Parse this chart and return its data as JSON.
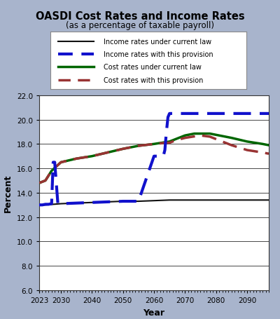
{
  "title": "OASDI Cost Rates and Income Rates",
  "subtitle": "(as a percentage of taxable payroll)",
  "xlabel": "Year",
  "ylabel": "Percent",
  "bg_outer": "#a8b4cc",
  "bg_plot": "#ffffff",
  "ylim": [
    6.0,
    22.0
  ],
  "yticks": [
    6.0,
    8.0,
    10.0,
    12.0,
    14.0,
    16.0,
    18.0,
    20.0,
    22.0
  ],
  "xlim_start": 2023,
  "xlim_end": 2097,
  "xticks": [
    2023,
    2030,
    2040,
    2050,
    2060,
    2070,
    2080,
    2090
  ],
  "legend_labels": [
    "Income rates under current law",
    "Income rates with this provision",
    "Cost rates under current law",
    "Cost rates with this provision"
  ],
  "income_current_x": [
    2023,
    2025,
    2030,
    2035,
    2040,
    2045,
    2050,
    2055,
    2060,
    2065,
    2070,
    2075,
    2080,
    2085,
    2090,
    2095,
    2097
  ],
  "income_current_y": [
    13.0,
    13.0,
    13.1,
    13.15,
    13.2,
    13.25,
    13.3,
    13.3,
    13.35,
    13.4,
    13.4,
    13.4,
    13.4,
    13.4,
    13.4,
    13.4,
    13.4
  ],
  "income_provision_x": [
    2023,
    2024,
    2025,
    2026,
    2027,
    2027.5,
    2028,
    2029,
    2030,
    2035,
    2040,
    2045,
    2050,
    2055,
    2060,
    2063,
    2063.5,
    2064,
    2064.5,
    2065,
    2065.3,
    2066,
    2070,
    2075,
    2080,
    2085,
    2090,
    2095,
    2097
  ],
  "income_provision_y": [
    13.0,
    13.0,
    13.05,
    13.05,
    13.1,
    16.5,
    16.5,
    13.15,
    13.1,
    13.15,
    13.2,
    13.25,
    13.3,
    13.3,
    17.0,
    17.0,
    17.5,
    19.0,
    20.2,
    20.5,
    20.5,
    20.5,
    20.5,
    20.5,
    20.5,
    20.5,
    20.5,
    20.5,
    20.5
  ],
  "cost_current_x": [
    2023,
    2025,
    2027,
    2030,
    2035,
    2040,
    2045,
    2050,
    2055,
    2060,
    2065,
    2070,
    2073,
    2075,
    2078,
    2080,
    2083,
    2085,
    2090,
    2095,
    2097
  ],
  "cost_current_y": [
    14.8,
    15.0,
    15.8,
    16.5,
    16.8,
    17.0,
    17.3,
    17.6,
    17.85,
    18.0,
    18.2,
    18.7,
    18.85,
    18.85,
    18.85,
    18.75,
    18.6,
    18.5,
    18.2,
    18.0,
    17.9
  ],
  "cost_provision_x": [
    2023,
    2025,
    2027,
    2030,
    2035,
    2040,
    2045,
    2050,
    2055,
    2060,
    2064,
    2065,
    2067,
    2070,
    2075,
    2078,
    2080,
    2082,
    2085,
    2090,
    2095,
    2097
  ],
  "cost_provision_y": [
    14.8,
    15.0,
    15.8,
    16.5,
    16.8,
    17.0,
    17.3,
    17.6,
    17.85,
    18.0,
    18.1,
    18.1,
    18.3,
    18.5,
    18.7,
    18.6,
    18.4,
    18.2,
    17.9,
    17.5,
    17.3,
    17.2
  ],
  "income_current_color": "#111111",
  "income_provision_color": "#1111cc",
  "cost_current_color": "#006600",
  "cost_provision_color": "#993333",
  "income_current_lw": 1.5,
  "income_provision_lw": 3.0,
  "cost_current_lw": 2.5,
  "cost_provision_lw": 2.5
}
